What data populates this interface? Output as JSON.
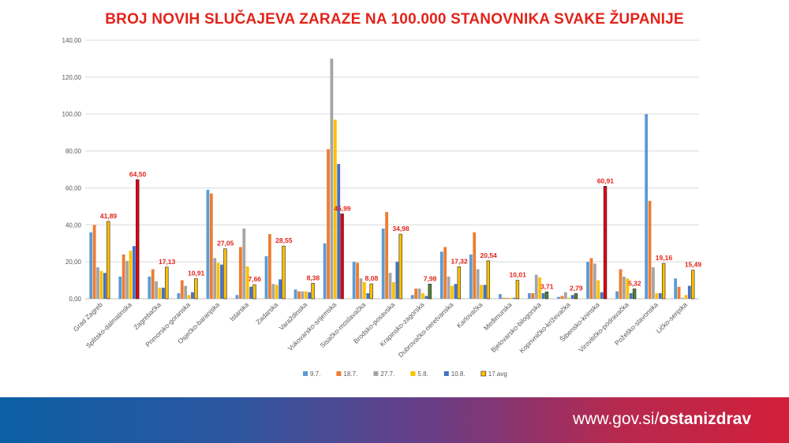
{
  "slide": {
    "title": "BROJ NOVIH SLUČAJEVA ZARAZE NA 100.000 STANOVNIKA SVAKE ŽUPANIJE",
    "footer_url_plain": "www.gov.si/",
    "footer_url_bold": "ostanizdrav"
  },
  "colors": {
    "title": "#e2231a",
    "footer_left": "#0b5fa4",
    "footer_right": "#d21f3a"
  },
  "chart_data": {
    "type": "bar",
    "title": "BROJ NOVIH SLUČAJEVA ZARAZE NA 100.000 STANOVNIKA SVAKE ŽUPANIJE",
    "xlabel": "",
    "ylabel": "",
    "ylim": [
      0,
      140
    ],
    "yticks": [
      "0,00",
      "20,00",
      "40,00",
      "60,00",
      "80,00",
      "100,00",
      "120,00",
      "140,00"
    ],
    "grid": true,
    "legend_position": "bottom",
    "categories": [
      "Grad Zagreb",
      "Splitsko-dalmatinska",
      "Zagrebačka",
      "Primorsko-goranska",
      "Osječko-baranjska",
      "Istarska",
      "Zadarska",
      "Varaždinska",
      "Vukovarsko-srijemska",
      "Sisačko-moslavačka",
      "Brodsko-posavska",
      "Krapinsko-zagorska",
      "Dubrovačko-neretvanska",
      "Karlovačka",
      "Međimurska",
      "Bjelovarsko-bilogorska",
      "Koprivničko-križevačka",
      "Šibensko-kninska",
      "Virovitičko-podravačka",
      "Požeško-slavonska",
      "Ličko-senjska"
    ],
    "series": [
      {
        "name": "9.7.",
        "color": "#5b9bd5",
        "values": [
          36,
          12,
          12,
          3,
          59,
          2,
          23,
          5,
          30,
          20,
          38,
          2,
          25.5,
          24,
          2.5,
          3,
          1,
          20,
          4,
          100,
          11
        ]
      },
      {
        "name": "18.7.",
        "color": "#ed7d31",
        "values": [
          40,
          24,
          16,
          10,
          57,
          28,
          35,
          4,
          81,
          19.5,
          47,
          5.5,
          28,
          36,
          0.5,
          3,
          1.5,
          22,
          16,
          53,
          6.5
        ]
      },
      {
        "name": "27.7.",
        "color": "#a5a5a5",
        "values": [
          17,
          20.5,
          9.5,
          7,
          22,
          38,
          8,
          4,
          130,
          11,
          14,
          5.5,
          12,
          16,
          0.5,
          13,
          3.5,
          19,
          12,
          17,
          0.5
        ]
      },
      {
        "name": "5.8.",
        "color": "#ffc000",
        "values": [
          15,
          26,
          6,
          2,
          19.5,
          17.5,
          7.5,
          4,
          97,
          9,
          9,
          3,
          7,
          7.5,
          0.5,
          11.5,
          0.5,
          10,
          11,
          3,
          2
        ]
      },
      {
        "name": "10.8.",
        "color": "#4472c4",
        "values": [
          14,
          28.5,
          6,
          3.5,
          18.5,
          6.5,
          10.5,
          3.5,
          73,
          3,
          20,
          1.5,
          8,
          7.5,
          0.5,
          3,
          2,
          3.5,
          3,
          3,
          7
        ]
      },
      {
        "name": "17.avg",
        "color": "#ffc000",
        "values": [
          41.89,
          64.5,
          17.13,
          10.91,
          27.05,
          7.66,
          28.55,
          8.38,
          45.99,
          8.08,
          34.98,
          7.98,
          17.32,
          20.54,
          10.01,
          3.71,
          2.79,
          60.91,
          5.32,
          19.16,
          15.49
        ]
      }
    ],
    "highlight_colors": [
      "#ffc000",
      "#e3000f",
      "#ffc000",
      "#ffc000",
      "#ffc000",
      "#ffc000",
      "#ffc000",
      "#ffc000",
      "#e3000f",
      "#ffc000",
      "#ffc000",
      "#548235",
      "#ffc000",
      "#ffc000",
      "#ffc000",
      "#548235",
      "#548235",
      "#e3000f",
      "#548235",
      "#ffc000",
      "#ffc000"
    ],
    "data_labels": [
      "41,89",
      "64,50",
      "17,13",
      "10,91",
      "27,05",
      "7,66",
      "28,55",
      "8,38",
      "45,99",
      "8,08",
      "34,98",
      "7,98",
      "17,32",
      "20,54",
      "10,01",
      "3,71",
      "2,79",
      "60,91",
      "5,32",
      "19,16",
      "15,49"
    ]
  }
}
